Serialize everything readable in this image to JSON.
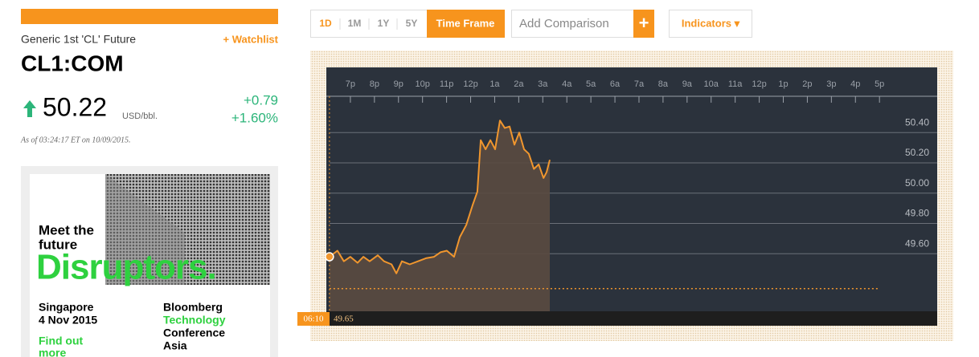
{
  "header": {
    "name": "Generic 1st 'CL' Future",
    "watchlist": "+ Watchlist",
    "ticker": "CL1:COM"
  },
  "quote": {
    "price": "50.22",
    "unit": "USD/bbl.",
    "change": "+0.79",
    "change_pct": "+1.60%",
    "as_of": "As of 03:24:17 ET on 10/09/2015."
  },
  "ad": {
    "headline": [
      "Meet the",
      "future"
    ],
    "brand_word": "Disruptors.",
    "location": [
      "Singapore",
      "4 Nov 2015"
    ],
    "cta": [
      "Find out",
      "more"
    ],
    "event": [
      "Bloomberg",
      "Technology",
      "Conference",
      "Asia"
    ]
  },
  "toolbar": {
    "ranges": [
      "1D",
      "1M",
      "1Y",
      "5Y"
    ],
    "time_frame": "Time Frame",
    "comparison_placeholder": "Add Comparison",
    "add": "+",
    "indicators": "Indicators ▾"
  },
  "chart_data": {
    "type": "line",
    "color": "#f0962e",
    "fill": "#5a4a40",
    "x": [
      -0.87,
      -0.54,
      -0.27,
      0,
      0.3,
      0.54,
      0.8,
      1.14,
      1.4,
      1.71,
      1.91,
      2.14,
      2.47,
      2.81,
      3.14,
      3.48,
      3.75,
      4.01,
      4.31,
      4.55,
      4.82,
      5.08,
      5.28,
      5.42,
      5.62,
      5.82,
      6.02,
      6.22,
      6.42,
      6.62,
      6.82,
      7.02,
      7.22,
      7.42,
      7.63,
      7.83,
      8.03,
      8.16,
      8.29
    ],
    "values": [
      49.58,
      49.62,
      49.55,
      49.58,
      49.54,
      49.58,
      49.55,
      49.59,
      49.55,
      49.53,
      49.47,
      49.55,
      49.53,
      49.55,
      49.57,
      49.58,
      49.61,
      49.62,
      49.58,
      49.71,
      49.79,
      49.92,
      50.01,
      50.35,
      50.29,
      50.35,
      50.29,
      50.48,
      50.43,
      50.44,
      50.32,
      50.4,
      50.29,
      50.26,
      50.16,
      50.19,
      50.1,
      50.14,
      50.22
    ],
    "xlim": [
      -1,
      24.4
    ],
    "ylim": [
      49.22,
      50.64
    ],
    "xticks": [
      {
        "value": 0,
        "label": "7p"
      },
      {
        "value": 1,
        "label": "8p"
      },
      {
        "value": 2,
        "label": "9p"
      },
      {
        "value": 3,
        "label": "10p"
      },
      {
        "value": 4,
        "label": "11p"
      },
      {
        "value": 5,
        "label": "12p"
      },
      {
        "value": 6,
        "label": "1a"
      },
      {
        "value": 7,
        "label": "2a"
      },
      {
        "value": 8,
        "label": "3a"
      },
      {
        "value": 9,
        "label": "4a"
      },
      {
        "value": 10,
        "label": "5a"
      },
      {
        "value": 11,
        "label": "6a"
      },
      {
        "value": 12,
        "label": "7a"
      },
      {
        "value": 13,
        "label": "8a"
      },
      {
        "value": 14,
        "label": "9a"
      },
      {
        "value": 15,
        "label": "10a"
      },
      {
        "value": 16,
        "label": "11a"
      },
      {
        "value": 17,
        "label": "12p"
      },
      {
        "value": 18,
        "label": "1p"
      },
      {
        "value": 19,
        "label": "2p"
      },
      {
        "value": 20,
        "label": "3p"
      },
      {
        "value": 21,
        "label": "4p"
      },
      {
        "value": 22,
        "label": "5p"
      }
    ],
    "yticks": [
      {
        "value": 49.6,
        "label": "49.60"
      },
      {
        "value": 49.8,
        "label": "49.80"
      },
      {
        "value": 50,
        "label": "50.00"
      },
      {
        "value": 50.2,
        "label": "50.20"
      },
      {
        "value": 50.4,
        "label": "50.40"
      }
    ],
    "grid": true,
    "reference_line": 49.37,
    "cursor": {
      "time": "06:10",
      "value": 49.65
    }
  }
}
